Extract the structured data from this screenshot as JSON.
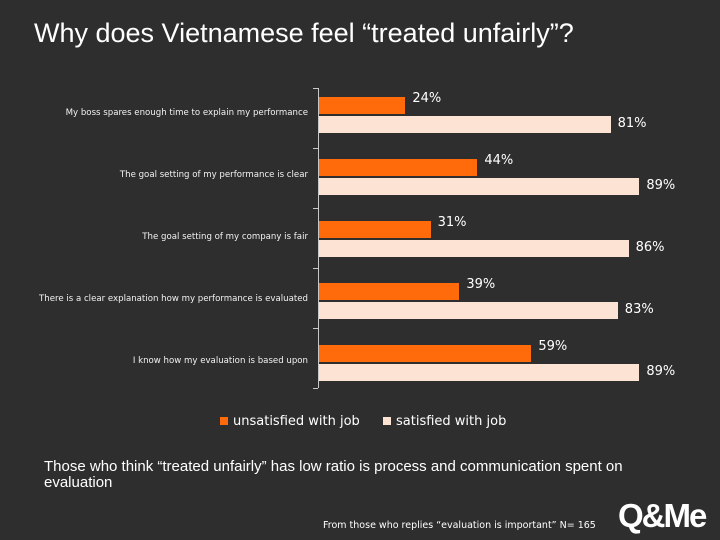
{
  "title": "Why does Vietnamese feel “treated unfairly”?",
  "chart_data": {
    "type": "bar",
    "orientation": "horizontal",
    "categories": [
      "My boss spares enough time to explain my performance",
      "The goal setting of my company is fair",
      "There is a clear explanation how my performance is evaluated",
      "I know how my evaluation is based upon",
      "The goal setting of my performance is clear"
    ],
    "display_order": [
      0,
      4,
      1,
      2,
      3
    ],
    "series": [
      {
        "name": "unsatisfied with job",
        "values": [
          24,
          31,
          39,
          59,
          44
        ],
        "color": "#ff6a0a"
      },
      {
        "name": "satisfied with job",
        "values": [
          81,
          86,
          83,
          89,
          89
        ],
        "color": "#fde3d3"
      }
    ],
    "value_labels": {
      "unsatisfied with job": [
        "24%",
        "31%",
        "39%",
        "59%",
        "44%"
      ],
      "satisfied with job": [
        "81%",
        "86%",
        "83%",
        "89%",
        "89%"
      ]
    },
    "xlim": [
      0,
      100
    ],
    "grid": false,
    "legend_position": "bottom"
  },
  "takeaway": "Those who think “treated unfairly” has low ratio is process and communication spent on evaluation",
  "source_note": "From those who replies “evaluation is important” N= 165",
  "logo_text": "Q&Me",
  "colors": {
    "background": "#2e2e2e",
    "unsatisfied": "#ff6a0a",
    "satisfied": "#fde3d3"
  }
}
